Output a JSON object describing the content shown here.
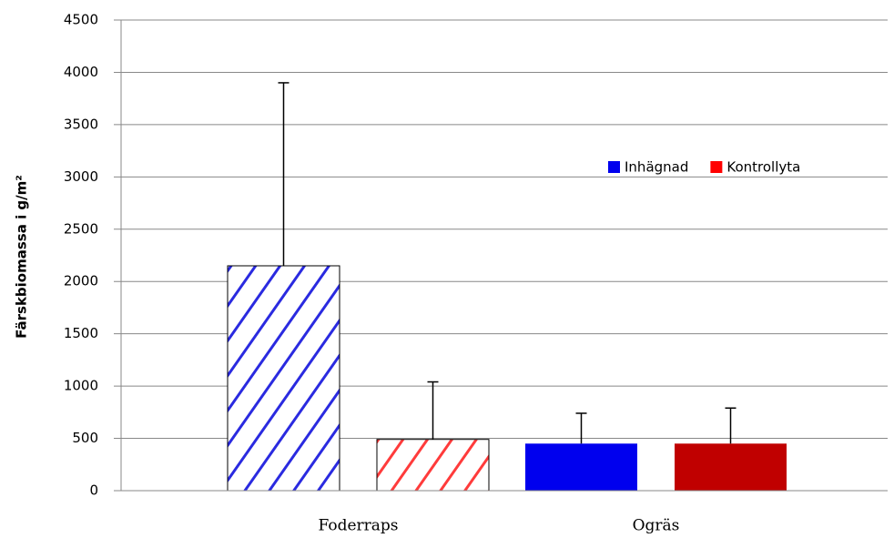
{
  "chart_data": {
    "type": "bar",
    "y_label": "Färskbiomassa  i g/m²",
    "categories": [
      "Foderraps",
      "Ogräs"
    ],
    "hatched": [
      true,
      false
    ],
    "series": [
      {
        "name": "Inhägnad",
        "color": "#0000ee",
        "bar_colors": [
          "#2a2ae0",
          "#0000ee"
        ],
        "values": [
          2150,
          450
        ],
        "errors": [
          1750,
          290
        ]
      },
      {
        "name": "Kontrollyta",
        "color": "#ff0000",
        "bar_colors": [
          "#ff3b3b",
          "#c00000"
        ],
        "values": [
          490,
          450
        ],
        "errors": [
          550,
          340
        ]
      }
    ],
    "ylim": [
      0,
      4500
    ],
    "yticks": [
      0,
      500,
      1000,
      1500,
      2000,
      2500,
      3000,
      3500,
      4000,
      4500
    ],
    "grid": true
  }
}
